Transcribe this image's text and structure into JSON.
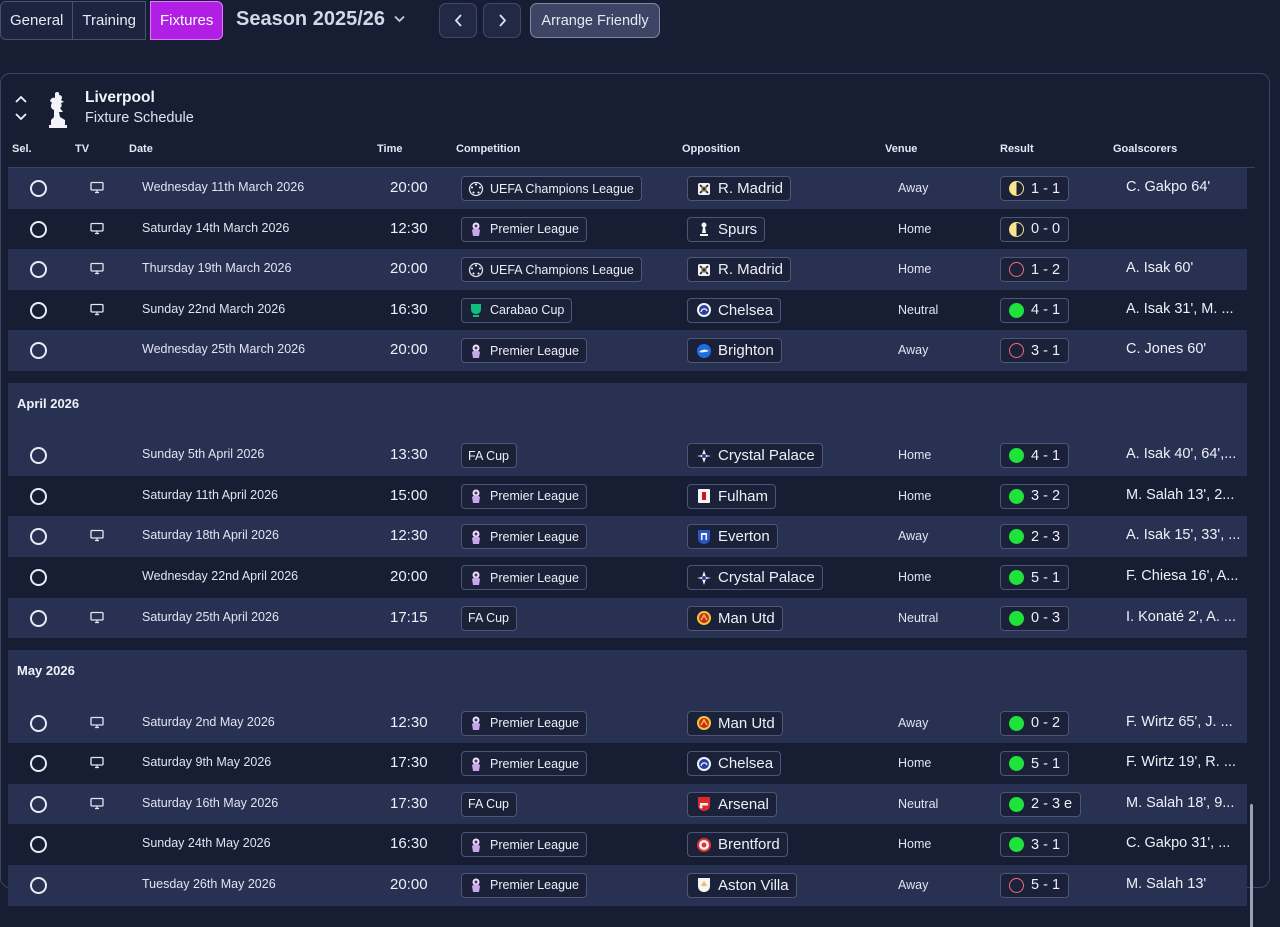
{
  "tabs": [
    {
      "label": "General"
    },
    {
      "label": "Training"
    },
    {
      "label": "Fixtures"
    }
  ],
  "season_label": "Season 2025/26",
  "arrange_label": "Arrange Friendly",
  "club": {
    "name": "Liverpool",
    "subtitle": "Fixture Schedule"
  },
  "columns": {
    "sel": "Sel.",
    "tv": "TV",
    "date": "Date",
    "time": "Time",
    "competition": "Competition",
    "opposition": "Opposition",
    "venue": "Venue",
    "result": "Result",
    "goalscorers": "Goalscorers"
  },
  "colors": {
    "accent": "#b21fe4",
    "win": "#1ee33a",
    "draw": "#f8e58c",
    "loss": "#f06c7e",
    "background": "#171d33",
    "row_alt": "#293152"
  },
  "groups": [
    {
      "month": "",
      "fixtures": [
        {
          "tv": true,
          "date": "Wednesday 11th March 2026",
          "time": "20:00",
          "competition": "UEFA Champions League",
          "comp_icon": "ucl-icon",
          "opposition": "R. Madrid",
          "opp_icon": "real-madrid-crest-icon",
          "venue": "Away",
          "result": "1 - 1",
          "outcome": "draw",
          "scorers": "C. Gakpo 64'"
        },
        {
          "tv": true,
          "date": "Saturday 14th March 2026",
          "time": "12:30",
          "competition": "Premier League",
          "comp_icon": "premier-league-icon",
          "opposition": "Spurs",
          "opp_icon": "spurs-crest-icon",
          "venue": "Home",
          "result": "0 - 0",
          "outcome": "draw",
          "scorers": ""
        },
        {
          "tv": true,
          "date": "Thursday 19th March 2026",
          "time": "20:00",
          "competition": "UEFA Champions League",
          "comp_icon": "ucl-icon",
          "opposition": "R. Madrid",
          "opp_icon": "real-madrid-crest-icon",
          "venue": "Home",
          "result": "1 - 2",
          "outcome": "loss",
          "scorers": "A. Isak 60'"
        },
        {
          "tv": true,
          "date": "Sunday 22nd March 2026",
          "time": "16:30",
          "competition": "Carabao Cup",
          "comp_icon": "carabao-cup-icon",
          "opposition": "Chelsea",
          "opp_icon": "chelsea-crest-icon",
          "venue": "Neutral",
          "result": "4 - 1",
          "outcome": "win",
          "scorers": "A. Isak 31', M. ..."
        },
        {
          "tv": false,
          "date": "Wednesday 25th March 2026",
          "time": "20:00",
          "competition": "Premier League",
          "comp_icon": "premier-league-icon",
          "opposition": "Brighton",
          "opp_icon": "brighton-crest-icon",
          "venue": "Away",
          "result": "3 - 1",
          "outcome": "loss",
          "scorers": "C. Jones 60'"
        }
      ]
    },
    {
      "month": "April 2026",
      "fixtures": [
        {
          "tv": false,
          "date": "Sunday 5th April 2026",
          "time": "13:30",
          "competition": "FA Cup",
          "comp_icon": "",
          "opposition": "Crystal Palace",
          "opp_icon": "crystal-palace-crest-icon",
          "venue": "Home",
          "result": "4 - 1",
          "outcome": "win",
          "scorers": "A. Isak 40', 64',..."
        },
        {
          "tv": false,
          "date": "Saturday 11th April 2026",
          "time": "15:00",
          "competition": "Premier League",
          "comp_icon": "premier-league-icon",
          "opposition": "Fulham",
          "opp_icon": "fulham-crest-icon",
          "venue": "Home",
          "result": "3 - 2",
          "outcome": "win",
          "scorers": "M. Salah 13', 2..."
        },
        {
          "tv": true,
          "date": "Saturday 18th April 2026",
          "time": "12:30",
          "competition": "Premier League",
          "comp_icon": "premier-league-icon",
          "opposition": "Everton",
          "opp_icon": "everton-crest-icon",
          "venue": "Away",
          "result": "2 - 3",
          "outcome": "win",
          "scorers": "A. Isak 15', 33', ..."
        },
        {
          "tv": false,
          "date": "Wednesday 22nd April 2026",
          "time": "20:00",
          "competition": "Premier League",
          "comp_icon": "premier-league-icon",
          "opposition": "Crystal Palace",
          "opp_icon": "crystal-palace-crest-icon",
          "venue": "Home",
          "result": "5 - 1",
          "outcome": "win",
          "scorers": "F. Chiesa 16', A..."
        },
        {
          "tv": true,
          "date": "Saturday 25th April 2026",
          "time": "17:15",
          "competition": "FA Cup",
          "comp_icon": "",
          "opposition": "Man Utd",
          "opp_icon": "man-utd-crest-icon",
          "venue": "Neutral",
          "result": "0 - 3",
          "outcome": "win",
          "scorers": "I. Konaté 2', A. ..."
        }
      ]
    },
    {
      "month": "May 2026",
      "fixtures": [
        {
          "tv": true,
          "date": "Saturday 2nd May 2026",
          "time": "12:30",
          "competition": "Premier League",
          "comp_icon": "premier-league-icon",
          "opposition": "Man Utd",
          "opp_icon": "man-utd-crest-icon",
          "venue": "Away",
          "result": "0 - 2",
          "outcome": "win",
          "scorers": "F. Wirtz 65', J. ..."
        },
        {
          "tv": true,
          "date": "Saturday 9th May 2026",
          "time": "17:30",
          "competition": "Premier League",
          "comp_icon": "premier-league-icon",
          "opposition": "Chelsea",
          "opp_icon": "chelsea-crest-icon",
          "venue": "Home",
          "result": "5 - 1",
          "outcome": "win",
          "scorers": "F. Wirtz 19', R. ..."
        },
        {
          "tv": true,
          "date": "Saturday 16th May 2026",
          "time": "17:30",
          "competition": "FA Cup",
          "comp_icon": "",
          "opposition": "Arsenal",
          "opp_icon": "arsenal-crest-icon",
          "venue": "Neutral",
          "result": "2 - 3 e",
          "outcome": "win",
          "scorers": "M. Salah 18', 9..."
        },
        {
          "tv": false,
          "date": "Sunday 24th May 2026",
          "time": "16:30",
          "competition": "Premier League",
          "comp_icon": "premier-league-icon",
          "opposition": "Brentford",
          "opp_icon": "brentford-crest-icon",
          "venue": "Home",
          "result": "3 - 1",
          "outcome": "win",
          "scorers": "C. Gakpo 31', ..."
        },
        {
          "tv": false,
          "date": "Tuesday 26th May 2026",
          "time": "20:00",
          "competition": "Premier League",
          "comp_icon": "premier-league-icon",
          "opposition": "Aston Villa",
          "opp_icon": "aston-villa-crest-icon",
          "venue": "Away",
          "result": "5 - 1",
          "outcome": "loss",
          "scorers": "M. Salah 13'"
        }
      ]
    }
  ]
}
